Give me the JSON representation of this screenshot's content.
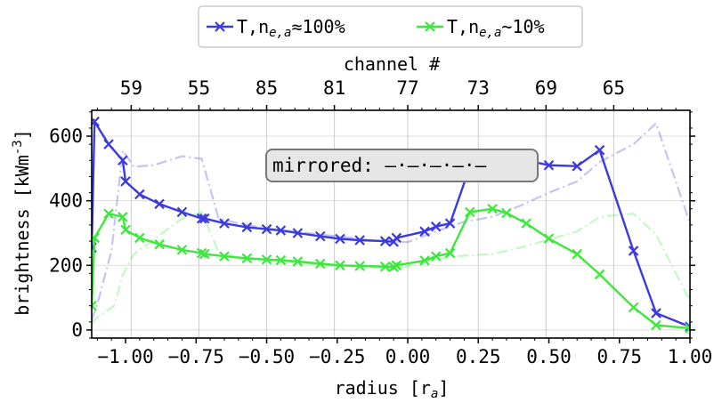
{
  "chart_data": {
    "type": "line",
    "xlabel": "radius [r",
    "xlabel_sub": "a",
    "xlabel_end": "]",
    "ylabel": "brightness [kWm",
    "ylabel_sup": "-3",
    "ylabel_end": "]",
    "top_axis_label": "channel #",
    "xlim": [
      -1.12,
      1.0
    ],
    "ylim": [
      -25,
      680
    ],
    "x_ticks": [
      -1.0,
      -0.75,
      -0.5,
      -0.25,
      0.0,
      0.25,
      0.5,
      0.75,
      1.0
    ],
    "x_tick_labels": [
      "−1.00",
      "−0.75",
      "−0.50",
      "−0.25",
      "0.00",
      "0.25",
      "0.50",
      "0.75",
      "1.00"
    ],
    "y_ticks": [
      0,
      200,
      400,
      600
    ],
    "y_tick_labels": [
      "0",
      "200",
      "400",
      "600"
    ],
    "top_ticks": [
      -0.98,
      -0.74,
      -0.5,
      -0.26,
      0.0,
      0.25,
      0.49,
      0.73
    ],
    "top_tick_labels": [
      "59",
      "55",
      "85",
      "81",
      "77",
      "73",
      "69",
      "65"
    ],
    "grid": true,
    "legend_position": "top-center",
    "annotation": "mirrored: —·—·—·—·—",
    "series": [
      {
        "name_main": "T,n",
        "name_sub": "e,a",
        "name_rest": "≈100%",
        "color": "#3a3ae0",
        "x": [
          -1.12,
          -1.11,
          -1.06,
          -1.01,
          -1.0,
          -0.95,
          -0.88,
          -0.8,
          -0.73,
          -0.72,
          -0.65,
          -0.57,
          -0.5,
          -0.45,
          -0.39,
          -0.31,
          -0.24,
          -0.17,
          -0.08,
          -0.05,
          -0.04,
          0.06,
          0.1,
          0.15,
          0.22,
          0.3,
          0.35,
          0.42,
          0.5,
          0.6,
          0.68,
          0.8,
          0.88,
          1.0
        ],
        "y": [
          255,
          645,
          575,
          525,
          460,
          420,
          390,
          365,
          345,
          345,
          330,
          318,
          312,
          308,
          300,
          290,
          282,
          278,
          275,
          273,
          285,
          305,
          320,
          330,
          505,
          530,
          537,
          525,
          510,
          507,
          557,
          245,
          52,
          10
        ]
      },
      {
        "name_main": "T,n",
        "name_sub": "e,a",
        "name_rest": "~10%",
        "color": "#3de83d",
        "x": [
          -1.12,
          -1.11,
          -1.06,
          -1.01,
          -1.0,
          -0.95,
          -0.88,
          -0.8,
          -0.73,
          -0.72,
          -0.65,
          -0.57,
          -0.5,
          -0.45,
          -0.39,
          -0.31,
          -0.24,
          -0.17,
          -0.08,
          -0.05,
          -0.04,
          0.06,
          0.1,
          0.15,
          0.22,
          0.3,
          0.35,
          0.42,
          0.5,
          0.6,
          0.68,
          0.8,
          0.88,
          1.0
        ],
        "y": [
          75,
          285,
          360,
          350,
          310,
          285,
          265,
          248,
          238,
          235,
          228,
          222,
          218,
          216,
          212,
          205,
          200,
          198,
          196,
          195,
          200,
          215,
          228,
          238,
          365,
          375,
          362,
          330,
          283,
          235,
          172,
          70,
          15,
          5
        ]
      }
    ],
    "mirrored_series": [
      {
        "color": "#3a3ae0",
        "x": [
          -1.12,
          -1.1,
          -1.05,
          -1.01,
          -0.97,
          -0.9,
          -0.8,
          -0.73,
          -0.67,
          -0.6,
          -0.5,
          -0.4,
          -0.3,
          -0.2,
          -0.1,
          0.0,
          0.1,
          0.2,
          0.3,
          0.4,
          0.5,
          0.6,
          0.68,
          0.8,
          0.88,
          1.0
        ],
        "y": [
          30,
          80,
          245,
          555,
          505,
          510,
          538,
          530,
          345,
          330,
          315,
          305,
          295,
          285,
          275,
          272,
          305,
          335,
          350,
          385,
          425,
          460,
          520,
          575,
          640,
          330
        ]
      },
      {
        "color": "#3de83d",
        "x": [
          -1.12,
          -1.1,
          -1.04,
          -1.01,
          -0.97,
          -0.9,
          -0.8,
          -0.73,
          -0.67,
          -0.6,
          -0.5,
          -0.4,
          -0.3,
          -0.2,
          -0.1,
          0.0,
          0.1,
          0.2,
          0.3,
          0.4,
          0.5,
          0.6,
          0.68,
          0.8,
          0.88,
          1.0
        ],
        "y": [
          20,
          40,
          75,
          170,
          235,
          280,
          345,
          365,
          240,
          225,
          215,
          208,
          202,
          198,
          196,
          196,
          220,
          230,
          235,
          255,
          280,
          305,
          350,
          360,
          295,
          90
        ]
      }
    ]
  }
}
